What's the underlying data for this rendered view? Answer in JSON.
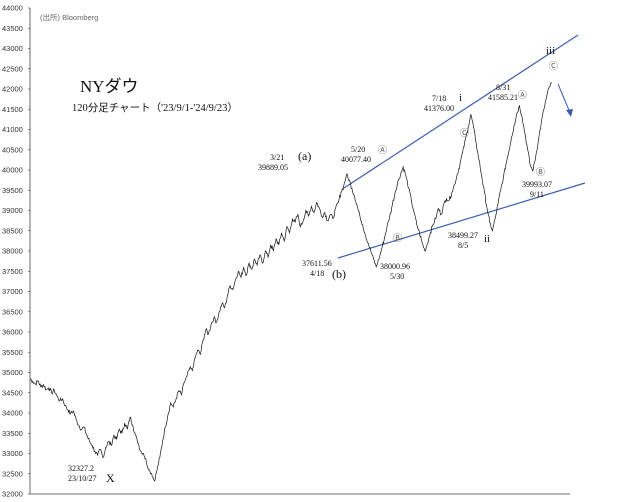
{
  "chart_data": {
    "type": "line",
    "title": "NYダウ",
    "subtitle": "120分足チャート（'23/9/1-'24/9/23）",
    "source": "(出所) Bloomberg",
    "ylim": [
      32000,
      44000
    ],
    "yticks": [
      "44000",
      "43500",
      "43000",
      "42500",
      "42000",
      "41500",
      "41000",
      "40500",
      "40000",
      "39500",
      "39000",
      "38500",
      "38000",
      "37500",
      "37000",
      "36500",
      "36000",
      "35500",
      "35000",
      "34500",
      "34000",
      "33500",
      "33000",
      "32500",
      "32000"
    ],
    "grid": false,
    "series": [
      {
        "values": [
          34850,
          34780,
          34720,
          34790,
          34650,
          34700,
          34580,
          34620,
          34500,
          34560,
          34420,
          34300,
          34350,
          34180,
          34080,
          33980,
          34050,
          33850,
          33700,
          33600,
          33650,
          33450,
          33300,
          33200,
          33050,
          32950,
          33100,
          32900,
          33150,
          33300,
          33200,
          33450,
          33350,
          33600,
          33500,
          33750,
          33600,
          33900,
          33700,
          33450,
          33250,
          33050,
          33000,
          32800,
          32600,
          32500,
          32327,
          32600,
          32900,
          33300,
          33650,
          33950,
          34250,
          34150,
          34350,
          34550,
          34450,
          34750,
          34900,
          35100,
          35050,
          35350,
          35550,
          35450,
          35800,
          36050,
          35950,
          36200,
          36350,
          36250,
          36500,
          36700,
          36600,
          36900,
          37150,
          37050,
          37300,
          37500,
          37350,
          37600,
          37400,
          37700,
          37550,
          37800,
          37650,
          37900,
          37700,
          38000,
          37850,
          38150,
          38000,
          38300,
          38150,
          38450,
          38250,
          38600,
          38450,
          38800,
          38700,
          38900,
          38600,
          38750,
          39000,
          38850,
          39100,
          38950,
          39200,
          39050,
          38850,
          38950,
          38750,
          38900,
          38800,
          39050,
          39200,
          39450,
          39600,
          39889,
          39750,
          39550,
          39350,
          39100,
          38850,
          38650,
          38400,
          38200,
          38000,
          37800,
          37611,
          37800,
          38050,
          38300,
          38600,
          38850,
          39150,
          39450,
          39700,
          39900,
          40077,
          39850,
          39550,
          39250,
          38950,
          38650,
          38450,
          38200,
          38001,
          38200,
          38450,
          38650,
          38800,
          39050,
          38900,
          39150,
          39300,
          39250,
          39450,
          39650,
          39900,
          40150,
          40450,
          40750,
          41050,
          41376,
          41050,
          40650,
          40250,
          39850,
          39450,
          39050,
          38700,
          38499,
          38800,
          39150,
          39500,
          39800,
          40150,
          40450,
          40800,
          41100,
          41400,
          41586,
          41300,
          40900,
          40500,
          40100,
          39993,
          40350,
          40750,
          41150,
          41500,
          41800,
          42050,
          42150
        ]
      }
    ],
    "points": [
      {
        "label": "32327.2",
        "date": "23/10/27",
        "value": 32327.2
      },
      {
        "label": "37611.56",
        "date": "4/18",
        "value": 37611.56
      },
      {
        "label": "39889.05",
        "date": "3/21",
        "value": 39889.05
      },
      {
        "label": "40077.40",
        "date": "5/20",
        "value": 40077.4
      },
      {
        "label": "38000.96",
        "date": "5/30",
        "value": 38000.96
      },
      {
        "label": "41376.00",
        "date": "7/18",
        "value": 41376.0
      },
      {
        "label": "38499.27",
        "date": "8/5",
        "value": 38499.27
      },
      {
        "label": "41585.21",
        "date": "8/31",
        "value": 41585.21
      },
      {
        "label": "39993.07",
        "date": "9/11",
        "value": 39993.07
      }
    ],
    "wave_labels": {
      "x": "X",
      "a": "(a)",
      "b": "(b)",
      "ii": "ii",
      "i": "i",
      "iii": "iii",
      "A": "Ⓐ",
      "B": "Ⓑ",
      "C": "Ⓒ"
    }
  }
}
